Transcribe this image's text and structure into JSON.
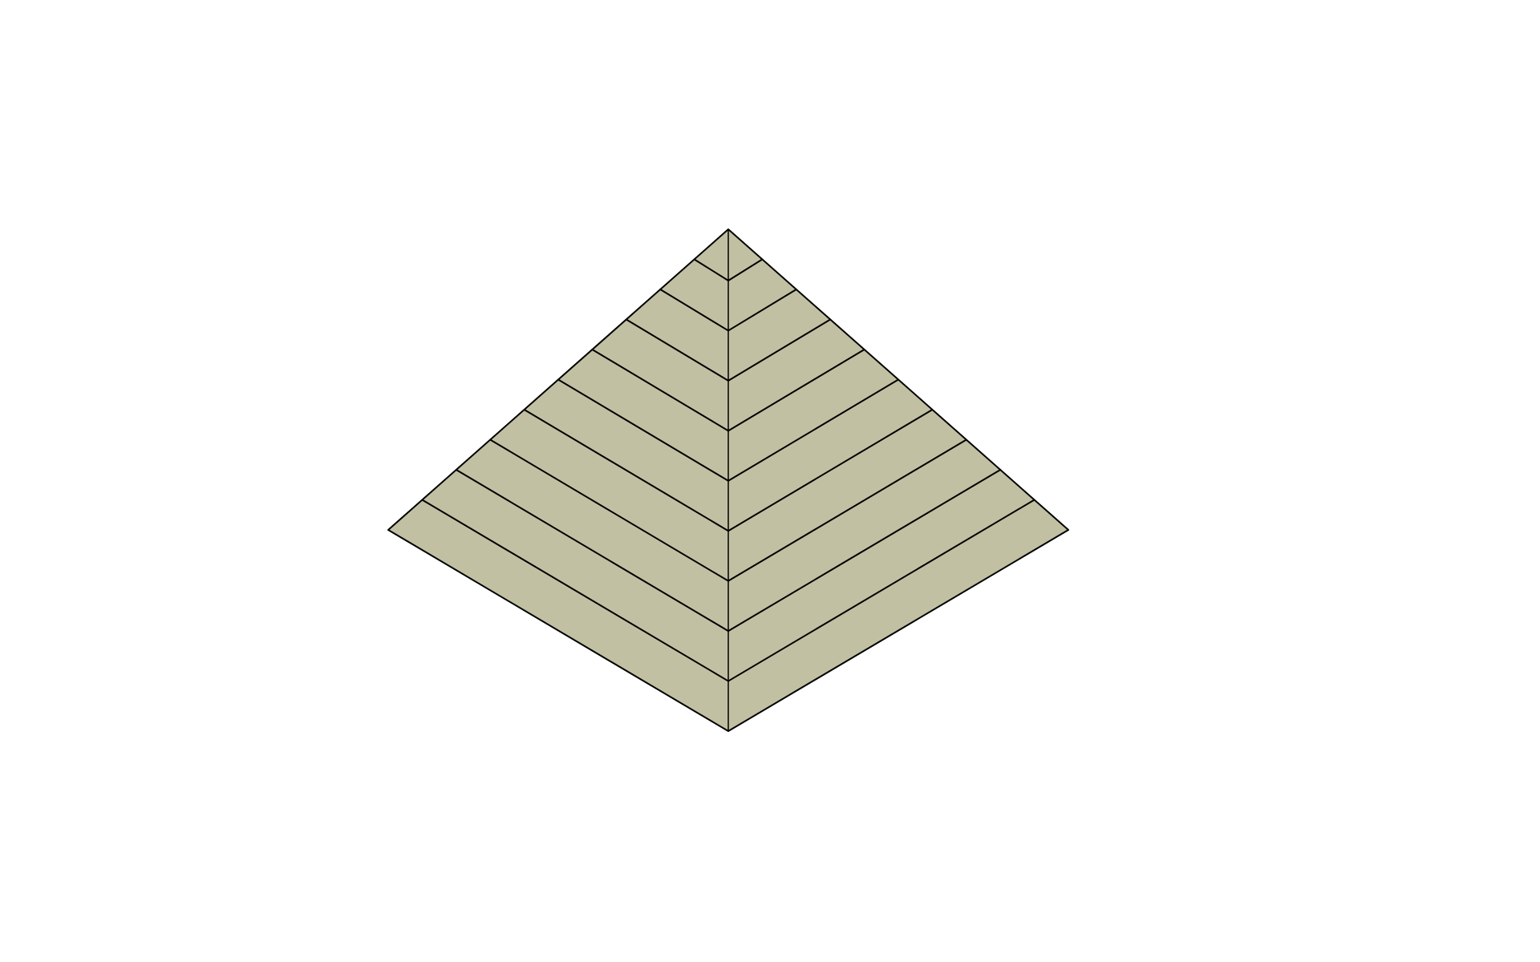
{
  "scene": {
    "object": "stepped-pyramid",
    "layers": 10,
    "faces_visible": 2,
    "colors": {
      "background": "#ffffff",
      "face_fill": "#c1c0a2",
      "edge_stroke": "#000000"
    }
  }
}
